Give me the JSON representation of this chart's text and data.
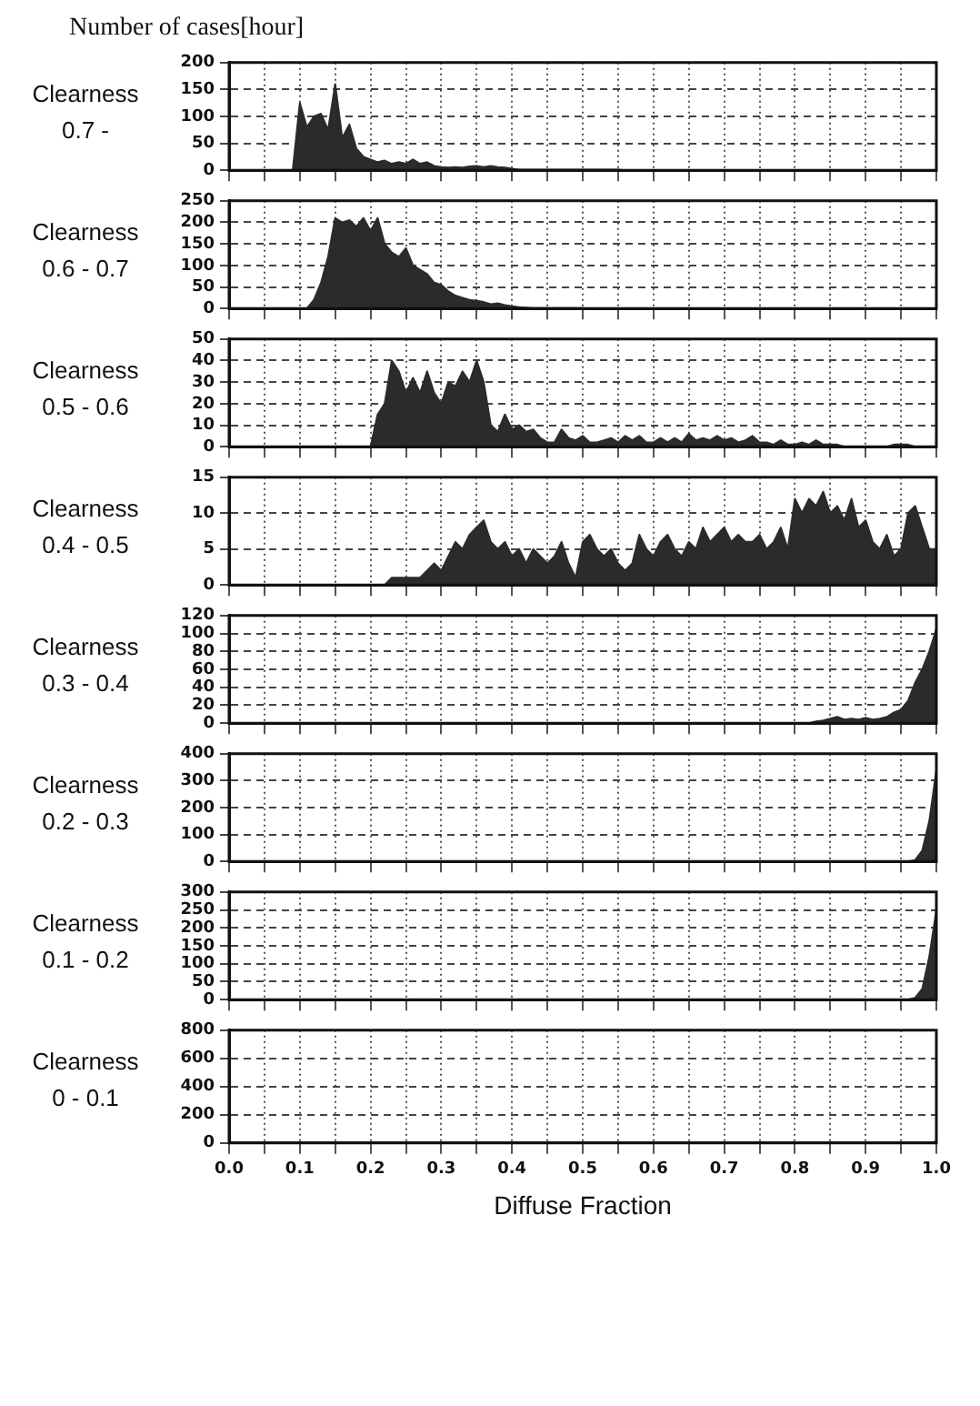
{
  "chart_data": [
    {
      "type": "area",
      "title": "Clearness 0.7 -",
      "ylabel": "Number of cases[hour]",
      "tick_labels": "y",
      "grid": true,
      "xlim": [
        0,
        1
      ],
      "ylim": [
        0,
        200
      ],
      "yticks": [
        0,
        50,
        100,
        150,
        200
      ],
      "xticks": [
        {
          "value": 0,
          "label": null
        },
        {
          "value": 0.05,
          "label": null
        },
        {
          "value": 0.1,
          "label": null
        },
        {
          "value": 0.15,
          "label": null
        },
        {
          "value": 0.2,
          "label": null
        },
        {
          "value": 0.25,
          "label": null
        },
        {
          "value": 0.3,
          "label": null
        },
        {
          "value": 0.35,
          "label": null
        },
        {
          "value": 0.4,
          "label": null
        },
        {
          "value": 0.45,
          "label": null
        },
        {
          "value": 0.5,
          "label": null
        },
        {
          "value": 0.55,
          "label": null
        },
        {
          "value": 0.6,
          "label": null
        },
        {
          "value": 0.65,
          "label": null
        },
        {
          "value": 0.7,
          "label": null
        },
        {
          "value": 0.75,
          "label": null
        },
        {
          "value": 0.8,
          "label": null
        },
        {
          "value": 0.85,
          "label": null
        },
        {
          "value": 0.9,
          "label": null
        },
        {
          "value": 0.95,
          "label": null
        },
        {
          "value": 1,
          "label": null
        }
      ],
      "x": [
        0,
        0.01,
        0.02,
        0.03,
        0.04,
        0.05,
        0.06,
        0.07,
        0.08,
        0.09,
        0.1,
        0.11,
        0.12,
        0.13,
        0.14,
        0.15,
        0.16,
        0.17,
        0.18,
        0.19,
        0.2,
        0.21,
        0.22,
        0.23,
        0.24,
        0.25,
        0.26,
        0.27,
        0.28,
        0.29,
        0.3,
        0.31,
        0.32,
        0.33,
        0.34,
        0.35,
        0.36,
        0.37,
        0.38,
        0.39,
        0.4,
        0.41,
        0.42,
        0.43,
        0.44,
        0.45,
        0.46,
        0.47,
        0.48,
        0.49,
        0.5,
        0.51,
        0.52,
        0.53,
        0.54,
        0.55,
        0.56,
        0.57,
        0.58,
        0.59,
        0.6,
        0.61,
        0.62,
        0.63,
        0.64,
        0.65,
        0.66,
        0.67,
        0.68,
        0.69,
        0.7,
        0.71,
        0.72,
        0.73,
        0.74,
        0.75,
        0.76,
        0.77,
        0.78,
        0.79,
        0.8,
        0.81,
        0.82,
        0.83,
        0.84,
        0.85,
        0.86,
        0.87,
        0.88,
        0.89,
        0.9,
        0.91,
        0.92,
        0.93,
        0.94,
        0.95,
        0.96,
        0.97,
        0.98,
        0.99,
        1
      ],
      "color": "#2b2b2b",
      "values": [
        0,
        0,
        0,
        0,
        0,
        0,
        0,
        0,
        0,
        0,
        125,
        80,
        100,
        105,
        75,
        160,
        60,
        85,
        40,
        25,
        20,
        15,
        18,
        12,
        15,
        12,
        20,
        12,
        15,
        8,
        6,
        5,
        6,
        5,
        7,
        8,
        6,
        8,
        6,
        5,
        3,
        1,
        1,
        1,
        1,
        1,
        1,
        1,
        1,
        1,
        1,
        1,
        1,
        1,
        1,
        1,
        0,
        0,
        0,
        0,
        0,
        0,
        0,
        0,
        0,
        0,
        0,
        0,
        0,
        0,
        0,
        0,
        0,
        0,
        0,
        0,
        0,
        0,
        0,
        0,
        0,
        0,
        0,
        0,
        0,
        0,
        0,
        0,
        0,
        0,
        0,
        0,
        0,
        0,
        0,
        0,
        0,
        0,
        0,
        0,
        0
      ]
    },
    {
      "type": "area",
      "title": "Clearness 0.6 - 0.7",
      "tick_labels": "y",
      "grid": true,
      "xlim": [
        0,
        1
      ],
      "ylim": [
        0,
        250
      ],
      "yticks": [
        0,
        50,
        100,
        150,
        200,
        250
      ],
      "xticks": [
        {
          "value": 0,
          "label": null
        },
        {
          "value": 0.05,
          "label": null
        },
        {
          "value": 0.1,
          "label": null
        },
        {
          "value": 0.15,
          "label": null
        },
        {
          "value": 0.2,
          "label": null
        },
        {
          "value": 0.25,
          "label": null
        },
        {
          "value": 0.3,
          "label": null
        },
        {
          "value": 0.35,
          "label": null
        },
        {
          "value": 0.4,
          "label": null
        },
        {
          "value": 0.45,
          "label": null
        },
        {
          "value": 0.5,
          "label": null
        },
        {
          "value": 0.55,
          "label": null
        },
        {
          "value": 0.6,
          "label": null
        },
        {
          "value": 0.65,
          "label": null
        },
        {
          "value": 0.7,
          "label": null
        },
        {
          "value": 0.75,
          "label": null
        },
        {
          "value": 0.8,
          "label": null
        },
        {
          "value": 0.85,
          "label": null
        },
        {
          "value": 0.9,
          "label": null
        },
        {
          "value": 0.95,
          "label": null
        },
        {
          "value": 1,
          "label": null
        }
      ],
      "x": [
        0,
        0.01,
        0.02,
        0.03,
        0.04,
        0.05,
        0.06,
        0.07,
        0.08,
        0.09,
        0.1,
        0.11,
        0.12,
        0.13,
        0.14,
        0.15,
        0.16,
        0.17,
        0.18,
        0.19,
        0.2,
        0.21,
        0.22,
        0.23,
        0.24,
        0.25,
        0.26,
        0.27,
        0.28,
        0.29,
        0.3,
        0.31,
        0.32,
        0.33,
        0.34,
        0.35,
        0.36,
        0.37,
        0.38,
        0.39,
        0.4,
        0.41,
        0.42,
        0.43,
        0.44,
        0.45,
        0.46,
        0.47,
        0.48,
        0.49,
        0.5,
        0.51,
        0.52,
        0.53,
        0.54,
        0.55,
        0.56,
        0.57,
        0.58,
        0.59,
        0.6,
        0.61,
        0.62,
        0.63,
        0.64,
        0.65,
        0.66,
        0.67,
        0.68,
        0.69,
        0.7,
        0.71,
        0.72,
        0.73,
        0.74,
        0.75,
        0.76,
        0.77,
        0.78,
        0.79,
        0.8,
        0.81,
        0.82,
        0.83,
        0.84,
        0.85,
        0.86,
        0.87,
        0.88,
        0.89,
        0.9,
        0.91,
        0.92,
        0.93,
        0.94,
        0.95,
        0.96,
        0.97,
        0.98,
        0.99,
        1
      ],
      "color": "#2b2b2b",
      "values": [
        0,
        0,
        0,
        0,
        0,
        0,
        0,
        0,
        0,
        0,
        0,
        0,
        20,
        60,
        120,
        210,
        200,
        205,
        190,
        210,
        180,
        210,
        150,
        130,
        120,
        140,
        100,
        90,
        80,
        60,
        55,
        40,
        30,
        25,
        20,
        18,
        15,
        10,
        12,
        8,
        5,
        3,
        2,
        1,
        1,
        1,
        1,
        1,
        1,
        1,
        1,
        0,
        0,
        0,
        0,
        0,
        0,
        0,
        0,
        0,
        0,
        0,
        0,
        0,
        0,
        0,
        0,
        0,
        0,
        0,
        0,
        0,
        0,
        0,
        0,
        0,
        0,
        0,
        0,
        0,
        0,
        0,
        0,
        0,
        0,
        0,
        0,
        0,
        0,
        0,
        0,
        0,
        0,
        0,
        0,
        0,
        0,
        0,
        0,
        0,
        0
      ]
    },
    {
      "type": "area",
      "title": "Clearness 0.5 - 0.6",
      "tick_labels": "y",
      "grid": true,
      "xlim": [
        0,
        1
      ],
      "ylim": [
        0,
        50
      ],
      "yticks": [
        0,
        10,
        20,
        30,
        40,
        50
      ],
      "xticks": [
        {
          "value": 0,
          "label": null
        },
        {
          "value": 0.05,
          "label": null
        },
        {
          "value": 0.1,
          "label": null
        },
        {
          "value": 0.15,
          "label": null
        },
        {
          "value": 0.2,
          "label": null
        },
        {
          "value": 0.25,
          "label": null
        },
        {
          "value": 0.3,
          "label": null
        },
        {
          "value": 0.35,
          "label": null
        },
        {
          "value": 0.4,
          "label": null
        },
        {
          "value": 0.45,
          "label": null
        },
        {
          "value": 0.5,
          "label": null
        },
        {
          "value": 0.55,
          "label": null
        },
        {
          "value": 0.6,
          "label": null
        },
        {
          "value": 0.65,
          "label": null
        },
        {
          "value": 0.7,
          "label": null
        },
        {
          "value": 0.75,
          "label": null
        },
        {
          "value": 0.8,
          "label": null
        },
        {
          "value": 0.85,
          "label": null
        },
        {
          "value": 0.9,
          "label": null
        },
        {
          "value": 0.95,
          "label": null
        },
        {
          "value": 1,
          "label": null
        }
      ],
      "x": [
        0,
        0.01,
        0.02,
        0.03,
        0.04,
        0.05,
        0.06,
        0.07,
        0.08,
        0.09,
        0.1,
        0.11,
        0.12,
        0.13,
        0.14,
        0.15,
        0.16,
        0.17,
        0.18,
        0.19,
        0.2,
        0.21,
        0.22,
        0.23,
        0.24,
        0.25,
        0.26,
        0.27,
        0.28,
        0.29,
        0.3,
        0.31,
        0.32,
        0.33,
        0.34,
        0.35,
        0.36,
        0.37,
        0.38,
        0.39,
        0.4,
        0.41,
        0.42,
        0.43,
        0.44,
        0.45,
        0.46,
        0.47,
        0.48,
        0.49,
        0.5,
        0.51,
        0.52,
        0.53,
        0.54,
        0.55,
        0.56,
        0.57,
        0.58,
        0.59,
        0.6,
        0.61,
        0.62,
        0.63,
        0.64,
        0.65,
        0.66,
        0.67,
        0.68,
        0.69,
        0.7,
        0.71,
        0.72,
        0.73,
        0.74,
        0.75,
        0.76,
        0.77,
        0.78,
        0.79,
        0.8,
        0.81,
        0.82,
        0.83,
        0.84,
        0.85,
        0.86,
        0.87,
        0.88,
        0.89,
        0.9,
        0.91,
        0.92,
        0.93,
        0.94,
        0.95,
        0.96,
        0.97,
        0.98,
        0.99,
        1
      ],
      "color": "#2b2b2b",
      "values": [
        0,
        0,
        0,
        0,
        0,
        0,
        0,
        0,
        0,
        0,
        0,
        0,
        0,
        0,
        0,
        0,
        0,
        0,
        0,
        0,
        0,
        15,
        20,
        40,
        35,
        25,
        32,
        25,
        35,
        25,
        20,
        30,
        28,
        35,
        30,
        40,
        30,
        10,
        7,
        15,
        8,
        10,
        7,
        8,
        4,
        2,
        2,
        8,
        4,
        3,
        5,
        2,
        2,
        3,
        4,
        2,
        5,
        3,
        5,
        2,
        2,
        4,
        2,
        4,
        2,
        6,
        3,
        4,
        3,
        5,
        3,
        4,
        2,
        3,
        5,
        2,
        2,
        1,
        3,
        1,
        1,
        2,
        1,
        3,
        1,
        1,
        1,
        0,
        0,
        0,
        0,
        0,
        0,
        0,
        1,
        1,
        1,
        0,
        0,
        0,
        0
      ]
    },
    {
      "type": "area",
      "title": "Clearness 0.4 - 0.5",
      "tick_labels": "y",
      "grid": true,
      "xlim": [
        0,
        1
      ],
      "ylim": [
        0,
        15
      ],
      "yticks": [
        0,
        5,
        10,
        15
      ],
      "xticks": [
        {
          "value": 0,
          "label": null
        },
        {
          "value": 0.05,
          "label": null
        },
        {
          "value": 0.1,
          "label": null
        },
        {
          "value": 0.15,
          "label": null
        },
        {
          "value": 0.2,
          "label": null
        },
        {
          "value": 0.25,
          "label": null
        },
        {
          "value": 0.3,
          "label": null
        },
        {
          "value": 0.35,
          "label": null
        },
        {
          "value": 0.4,
          "label": null
        },
        {
          "value": 0.45,
          "label": null
        },
        {
          "value": 0.5,
          "label": null
        },
        {
          "value": 0.55,
          "label": null
        },
        {
          "value": 0.6,
          "label": null
        },
        {
          "value": 0.65,
          "label": null
        },
        {
          "value": 0.7,
          "label": null
        },
        {
          "value": 0.75,
          "label": null
        },
        {
          "value": 0.8,
          "label": null
        },
        {
          "value": 0.85,
          "label": null
        },
        {
          "value": 0.9,
          "label": null
        },
        {
          "value": 0.95,
          "label": null
        },
        {
          "value": 1,
          "label": null
        }
      ],
      "x": [
        0,
        0.01,
        0.02,
        0.03,
        0.04,
        0.05,
        0.06,
        0.07,
        0.08,
        0.09,
        0.1,
        0.11,
        0.12,
        0.13,
        0.14,
        0.15,
        0.16,
        0.17,
        0.18,
        0.19,
        0.2,
        0.21,
        0.22,
        0.23,
        0.24,
        0.25,
        0.26,
        0.27,
        0.28,
        0.29,
        0.3,
        0.31,
        0.32,
        0.33,
        0.34,
        0.35,
        0.36,
        0.37,
        0.38,
        0.39,
        0.4,
        0.41,
        0.42,
        0.43,
        0.44,
        0.45,
        0.46,
        0.47,
        0.48,
        0.49,
        0.5,
        0.51,
        0.52,
        0.53,
        0.54,
        0.55,
        0.56,
        0.57,
        0.58,
        0.59,
        0.6,
        0.61,
        0.62,
        0.63,
        0.64,
        0.65,
        0.66,
        0.67,
        0.68,
        0.69,
        0.7,
        0.71,
        0.72,
        0.73,
        0.74,
        0.75,
        0.76,
        0.77,
        0.78,
        0.79,
        0.8,
        0.81,
        0.82,
        0.83,
        0.84,
        0.85,
        0.86,
        0.87,
        0.88,
        0.89,
        0.9,
        0.91,
        0.92,
        0.93,
        0.94,
        0.95,
        0.96,
        0.97,
        0.98,
        0.99,
        1
      ],
      "color": "#2b2b2b",
      "values": [
        0,
        0,
        0,
        0,
        0,
        0,
        0,
        0,
        0,
        0,
        0,
        0,
        0,
        0,
        0,
        0,
        0,
        0,
        0,
        0,
        0,
        0,
        0,
        1,
        1,
        1,
        1,
        1,
        2,
        3,
        2,
        4,
        6,
        5,
        7,
        8,
        9,
        6,
        5,
        6,
        4,
        5,
        3,
        5,
        4,
        3,
        4,
        6,
        3,
        1,
        6,
        7,
        5,
        4,
        5,
        3,
        2,
        3,
        7,
        5,
        4,
        6,
        7,
        5,
        4,
        6,
        5,
        8,
        6,
        7,
        8,
        6,
        7,
        6,
        6,
        7,
        5,
        6,
        8,
        5,
        12,
        10,
        12,
        11,
        13,
        10,
        11,
        9,
        12,
        8,
        9,
        6,
        5,
        7,
        4,
        5,
        10,
        11,
        8,
        5,
        5
      ]
    },
    {
      "type": "area",
      "title": "Clearness 0.3 - 0.4",
      "tick_labels": "y",
      "grid": true,
      "xlim": [
        0,
        1
      ],
      "ylim": [
        0,
        120
      ],
      "yticks": [
        0,
        20,
        40,
        60,
        80,
        100,
        120
      ],
      "xticks": [
        {
          "value": 0,
          "label": null
        },
        {
          "value": 0.05,
          "label": null
        },
        {
          "value": 0.1,
          "label": null
        },
        {
          "value": 0.15,
          "label": null
        },
        {
          "value": 0.2,
          "label": null
        },
        {
          "value": 0.25,
          "label": null
        },
        {
          "value": 0.3,
          "label": null
        },
        {
          "value": 0.35,
          "label": null
        },
        {
          "value": 0.4,
          "label": null
        },
        {
          "value": 0.45,
          "label": null
        },
        {
          "value": 0.5,
          "label": null
        },
        {
          "value": 0.55,
          "label": null
        },
        {
          "value": 0.6,
          "label": null
        },
        {
          "value": 0.65,
          "label": null
        },
        {
          "value": 0.7,
          "label": null
        },
        {
          "value": 0.75,
          "label": null
        },
        {
          "value": 0.8,
          "label": null
        },
        {
          "value": 0.85,
          "label": null
        },
        {
          "value": 0.9,
          "label": null
        },
        {
          "value": 0.95,
          "label": null
        },
        {
          "value": 1,
          "label": null
        }
      ],
      "x": [
        0,
        0.01,
        0.02,
        0.03,
        0.04,
        0.05,
        0.06,
        0.07,
        0.08,
        0.09,
        0.1,
        0.11,
        0.12,
        0.13,
        0.14,
        0.15,
        0.16,
        0.17,
        0.18,
        0.19,
        0.2,
        0.21,
        0.22,
        0.23,
        0.24,
        0.25,
        0.26,
        0.27,
        0.28,
        0.29,
        0.3,
        0.31,
        0.32,
        0.33,
        0.34,
        0.35,
        0.36,
        0.37,
        0.38,
        0.39,
        0.4,
        0.41,
        0.42,
        0.43,
        0.44,
        0.45,
        0.46,
        0.47,
        0.48,
        0.49,
        0.5,
        0.51,
        0.52,
        0.53,
        0.54,
        0.55,
        0.56,
        0.57,
        0.58,
        0.59,
        0.6,
        0.61,
        0.62,
        0.63,
        0.64,
        0.65,
        0.66,
        0.67,
        0.68,
        0.69,
        0.7,
        0.71,
        0.72,
        0.73,
        0.74,
        0.75,
        0.76,
        0.77,
        0.78,
        0.79,
        0.8,
        0.81,
        0.82,
        0.83,
        0.84,
        0.85,
        0.86,
        0.87,
        0.88,
        0.89,
        0.9,
        0.91,
        0.92,
        0.93,
        0.94,
        0.95,
        0.96,
        0.97,
        0.98,
        0.99,
        1
      ],
      "color": "#2b2b2b",
      "values": [
        0,
        0,
        0,
        0,
        0,
        0,
        0,
        0,
        0,
        0,
        0,
        0,
        0,
        0,
        0,
        0,
        0,
        0,
        0,
        0,
        0,
        0,
        0,
        0,
        0,
        0,
        0,
        0,
        0,
        0,
        0,
        0,
        0,
        0,
        0,
        0,
        0,
        0,
        0,
        0,
        0,
        0,
        0,
        0,
        0,
        0,
        0,
        0,
        0,
        0,
        0,
        0,
        0,
        0,
        0,
        0,
        0,
        0,
        0,
        0,
        0,
        0,
        0,
        0,
        0,
        0,
        0,
        0,
        0,
        0,
        0,
        0,
        0,
        0,
        0,
        0,
        0,
        0,
        0,
        0,
        0,
        0,
        0,
        2,
        3,
        5,
        7,
        4,
        5,
        4,
        6,
        4,
        5,
        7,
        12,
        15,
        25,
        45,
        60,
        80,
        105
      ]
    },
    {
      "type": "area",
      "title": "Clearness 0.2 - 0.3",
      "tick_labels": "y",
      "grid": true,
      "xlim": [
        0,
        1
      ],
      "ylim": [
        0,
        400
      ],
      "yticks": [
        0,
        100,
        200,
        300,
        400
      ],
      "xticks": [
        {
          "value": 0,
          "label": null
        },
        {
          "value": 0.05,
          "label": null
        },
        {
          "value": 0.1,
          "label": null
        },
        {
          "value": 0.15,
          "label": null
        },
        {
          "value": 0.2,
          "label": null
        },
        {
          "value": 0.25,
          "label": null
        },
        {
          "value": 0.3,
          "label": null
        },
        {
          "value": 0.35,
          "label": null
        },
        {
          "value": 0.4,
          "label": null
        },
        {
          "value": 0.45,
          "label": null
        },
        {
          "value": 0.5,
          "label": null
        },
        {
          "value": 0.55,
          "label": null
        },
        {
          "value": 0.6,
          "label": null
        },
        {
          "value": 0.65,
          "label": null
        },
        {
          "value": 0.7,
          "label": null
        },
        {
          "value": 0.75,
          "label": null
        },
        {
          "value": 0.8,
          "label": null
        },
        {
          "value": 0.85,
          "label": null
        },
        {
          "value": 0.9,
          "label": null
        },
        {
          "value": 0.95,
          "label": null
        },
        {
          "value": 1,
          "label": null
        }
      ],
      "x": [
        0,
        0.01,
        0.02,
        0.03,
        0.04,
        0.05,
        0.06,
        0.07,
        0.08,
        0.09,
        0.1,
        0.11,
        0.12,
        0.13,
        0.14,
        0.15,
        0.16,
        0.17,
        0.18,
        0.19,
        0.2,
        0.21,
        0.22,
        0.23,
        0.24,
        0.25,
        0.26,
        0.27,
        0.28,
        0.29,
        0.3,
        0.31,
        0.32,
        0.33,
        0.34,
        0.35,
        0.36,
        0.37,
        0.38,
        0.39,
        0.4,
        0.41,
        0.42,
        0.43,
        0.44,
        0.45,
        0.46,
        0.47,
        0.48,
        0.49,
        0.5,
        0.51,
        0.52,
        0.53,
        0.54,
        0.55,
        0.56,
        0.57,
        0.58,
        0.59,
        0.6,
        0.61,
        0.62,
        0.63,
        0.64,
        0.65,
        0.66,
        0.67,
        0.68,
        0.69,
        0.7,
        0.71,
        0.72,
        0.73,
        0.74,
        0.75,
        0.76,
        0.77,
        0.78,
        0.79,
        0.8,
        0.81,
        0.82,
        0.83,
        0.84,
        0.85,
        0.86,
        0.87,
        0.88,
        0.89,
        0.9,
        0.91,
        0.92,
        0.93,
        0.94,
        0.95,
        0.96,
        0.97,
        0.98,
        0.99,
        1
      ],
      "color": "#2b2b2b",
      "values": [
        0,
        0,
        0,
        0,
        0,
        0,
        0,
        0,
        0,
        0,
        0,
        0,
        0,
        0,
        0,
        0,
        0,
        0,
        0,
        0,
        0,
        0,
        0,
        0,
        0,
        0,
        0,
        0,
        0,
        0,
        0,
        0,
        0,
        0,
        0,
        0,
        0,
        0,
        0,
        0,
        0,
        0,
        0,
        0,
        0,
        0,
        0,
        0,
        0,
        0,
        0,
        0,
        0,
        0,
        0,
        0,
        0,
        0,
        0,
        0,
        0,
        0,
        0,
        0,
        0,
        0,
        0,
        0,
        0,
        0,
        0,
        0,
        0,
        0,
        0,
        0,
        0,
        0,
        0,
        0,
        0,
        0,
        0,
        0,
        0,
        0,
        0,
        0,
        0,
        0,
        0,
        0,
        0,
        0,
        0,
        0,
        0,
        5,
        40,
        150,
        340
      ]
    },
    {
      "type": "area",
      "title": "Clearness 0.1 - 0.2",
      "tick_labels": "y",
      "grid": true,
      "xlim": [
        0,
        1
      ],
      "ylim": [
        0,
        300
      ],
      "yticks": [
        0,
        50,
        100,
        150,
        200,
        250,
        300
      ],
      "xticks": [
        {
          "value": 0,
          "label": null
        },
        {
          "value": 0.05,
          "label": null
        },
        {
          "value": 0.1,
          "label": null
        },
        {
          "value": 0.15,
          "label": null
        },
        {
          "value": 0.2,
          "label": null
        },
        {
          "value": 0.25,
          "label": null
        },
        {
          "value": 0.3,
          "label": null
        },
        {
          "value": 0.35,
          "label": null
        },
        {
          "value": 0.4,
          "label": null
        },
        {
          "value": 0.45,
          "label": null
        },
        {
          "value": 0.5,
          "label": null
        },
        {
          "value": 0.55,
          "label": null
        },
        {
          "value": 0.6,
          "label": null
        },
        {
          "value": 0.65,
          "label": null
        },
        {
          "value": 0.7,
          "label": null
        },
        {
          "value": 0.75,
          "label": null
        },
        {
          "value": 0.8,
          "label": null
        },
        {
          "value": 0.85,
          "label": null
        },
        {
          "value": 0.9,
          "label": null
        },
        {
          "value": 0.95,
          "label": null
        },
        {
          "value": 1,
          "label": null
        }
      ],
      "x": [
        0,
        0.01,
        0.02,
        0.03,
        0.04,
        0.05,
        0.06,
        0.07,
        0.08,
        0.09,
        0.1,
        0.11,
        0.12,
        0.13,
        0.14,
        0.15,
        0.16,
        0.17,
        0.18,
        0.19,
        0.2,
        0.21,
        0.22,
        0.23,
        0.24,
        0.25,
        0.26,
        0.27,
        0.28,
        0.29,
        0.3,
        0.31,
        0.32,
        0.33,
        0.34,
        0.35,
        0.36,
        0.37,
        0.38,
        0.39,
        0.4,
        0.41,
        0.42,
        0.43,
        0.44,
        0.45,
        0.46,
        0.47,
        0.48,
        0.49,
        0.5,
        0.51,
        0.52,
        0.53,
        0.54,
        0.55,
        0.56,
        0.57,
        0.58,
        0.59,
        0.6,
        0.61,
        0.62,
        0.63,
        0.64,
        0.65,
        0.66,
        0.67,
        0.68,
        0.69,
        0.7,
        0.71,
        0.72,
        0.73,
        0.74,
        0.75,
        0.76,
        0.77,
        0.78,
        0.79,
        0.8,
        0.81,
        0.82,
        0.83,
        0.84,
        0.85,
        0.86,
        0.87,
        0.88,
        0.89,
        0.9,
        0.91,
        0.92,
        0.93,
        0.94,
        0.95,
        0.96,
        0.97,
        0.98,
        0.99,
        1
      ],
      "color": "#2b2b2b",
      "values": [
        0,
        0,
        0,
        0,
        0,
        0,
        0,
        0,
        0,
        0,
        0,
        0,
        0,
        0,
        0,
        0,
        0,
        0,
        0,
        0,
        0,
        0,
        0,
        0,
        0,
        0,
        0,
        0,
        0,
        0,
        0,
        0,
        0,
        0,
        0,
        0,
        0,
        0,
        0,
        0,
        0,
        0,
        0,
        0,
        0,
        0,
        0,
        0,
        0,
        0,
        0,
        0,
        0,
        0,
        0,
        0,
        0,
        0,
        0,
        0,
        0,
        0,
        0,
        0,
        0,
        0,
        0,
        0,
        0,
        0,
        0,
        0,
        0,
        0,
        0,
        0,
        0,
        0,
        0,
        0,
        0,
        0,
        0,
        0,
        0,
        0,
        0,
        0,
        0,
        0,
        0,
        0,
        0,
        0,
        0,
        0,
        0,
        5,
        30,
        120,
        250
      ]
    },
    {
      "type": "area",
      "title": "Clearness 0 - 0.1",
      "xlabel": "Diffuse Fraction",
      "grid": true,
      "xlim": [
        0,
        1
      ],
      "ylim": [
        0,
        800
      ],
      "yticks": [
        0,
        200,
        400,
        600,
        800
      ],
      "xticks": [
        {
          "value": 0,
          "label": "0.0"
        },
        {
          "value": 0.05,
          "label": null
        },
        {
          "value": 0.1,
          "label": "0.1"
        },
        {
          "value": 0.15,
          "label": null
        },
        {
          "value": 0.2,
          "label": "0.2"
        },
        {
          "value": 0.25,
          "label": null
        },
        {
          "value": 0.3,
          "label": "0.3"
        },
        {
          "value": 0.35,
          "label": null
        },
        {
          "value": 0.4,
          "label": "0.4"
        },
        {
          "value": 0.45,
          "label": null
        },
        {
          "value": 0.5,
          "label": "0.5"
        },
        {
          "value": 0.55,
          "label": null
        },
        {
          "value": 0.6,
          "label": "0.6"
        },
        {
          "value": 0.65,
          "label": null
        },
        {
          "value": 0.7,
          "label": "0.7"
        },
        {
          "value": 0.75,
          "label": null
        },
        {
          "value": 0.8,
          "label": "0.8"
        },
        {
          "value": 0.85,
          "label": null
        },
        {
          "value": 0.9,
          "label": "0.9"
        },
        {
          "value": 0.95,
          "label": null
        },
        {
          "value": 1,
          "label": "1.0"
        }
      ],
      "x": [
        0,
        0.01,
        0.02,
        0.03,
        0.04,
        0.05,
        0.06,
        0.07,
        0.08,
        0.09,
        0.1,
        0.11,
        0.12,
        0.13,
        0.14,
        0.15,
        0.16,
        0.17,
        0.18,
        0.19,
        0.2,
        0.21,
        0.22,
        0.23,
        0.24,
        0.25,
        0.26,
        0.27,
        0.28,
        0.29,
        0.3,
        0.31,
        0.32,
        0.33,
        0.34,
        0.35,
        0.36,
        0.37,
        0.38,
        0.39,
        0.4,
        0.41,
        0.42,
        0.43,
        0.44,
        0.45,
        0.46,
        0.47,
        0.48,
        0.49,
        0.5,
        0.51,
        0.52,
        0.53,
        0.54,
        0.55,
        0.56,
        0.57,
        0.58,
        0.59,
        0.6,
        0.61,
        0.62,
        0.63,
        0.64,
        0.65,
        0.66,
        0.67,
        0.68,
        0.69,
        0.7,
        0.71,
        0.72,
        0.73,
        0.74,
        0.75,
        0.76,
        0.77,
        0.78,
        0.79,
        0.8,
        0.81,
        0.82,
        0.83,
        0.84,
        0.85,
        0.86,
        0.87,
        0.88,
        0.89,
        0.9,
        0.91,
        0.92,
        0.93,
        0.94,
        0.95,
        0.96,
        0.97,
        0.98,
        0.99,
        1
      ],
      "color": "#2b2b2b",
      "values": [
        0,
        0,
        0,
        0,
        0,
        0,
        0,
        0,
        0,
        0,
        0,
        0,
        0,
        0,
        0,
        0,
        0,
        0,
        0,
        0,
        0,
        0,
        0,
        0,
        0,
        0,
        0,
        0,
        0,
        0,
        0,
        0,
        0,
        0,
        0,
        0,
        0,
        0,
        0,
        0,
        0,
        0,
        0,
        0,
        0,
        0,
        0,
        0,
        0,
        0,
        0,
        0,
        0,
        0,
        0,
        0,
        0,
        0,
        0,
        0,
        0,
        0,
        0,
        0,
        0,
        0,
        0,
        0,
        0,
        0,
        0,
        0,
        0,
        0,
        0,
        0,
        0,
        0,
        0,
        0,
        0,
        0,
        0,
        0,
        0,
        0,
        0,
        0,
        0,
        0,
        0,
        0,
        0,
        0,
        0,
        0,
        0,
        0,
        0,
        0,
        10
      ]
    }
  ]
}
